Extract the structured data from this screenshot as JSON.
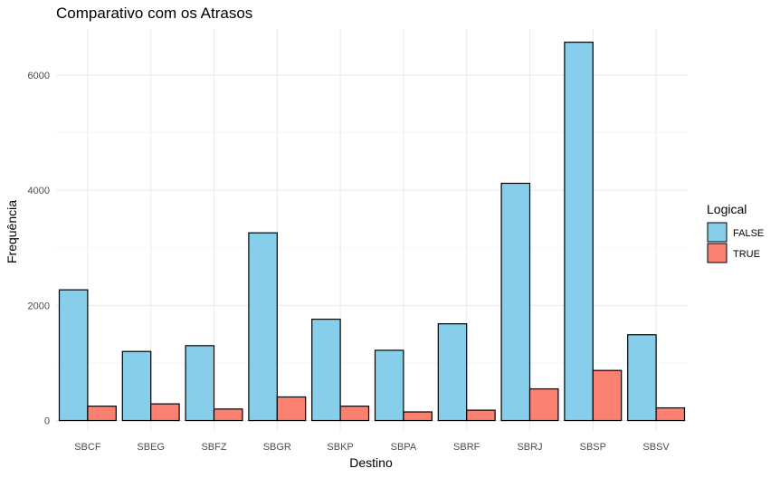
{
  "chart_data": {
    "type": "bar",
    "title": "Comparativo com os Atrasos",
    "xlabel": "Destino",
    "ylabel": "Frequência",
    "categories": [
      "SBCF",
      "SBEG",
      "SBFZ",
      "SBGR",
      "SBKP",
      "SBPA",
      "SBRF",
      "SBRJ",
      "SBSP",
      "SBSV"
    ],
    "series": [
      {
        "name": "FALSE",
        "color": "#87CEEB",
        "values": [
          2270,
          1200,
          1300,
          3260,
          1760,
          1220,
          1680,
          4120,
          6570,
          1490
        ]
      },
      {
        "name": "TRUE",
        "color": "#FA8072",
        "values": [
          250,
          290,
          200,
          410,
          250,
          150,
          180,
          550,
          870,
          220
        ]
      }
    ],
    "ylim": [
      -180,
      6800
    ],
    "yticks": [
      0,
      2000,
      4000,
      6000
    ],
    "grid": true,
    "legend": {
      "title": "Logical",
      "position": "right"
    }
  }
}
